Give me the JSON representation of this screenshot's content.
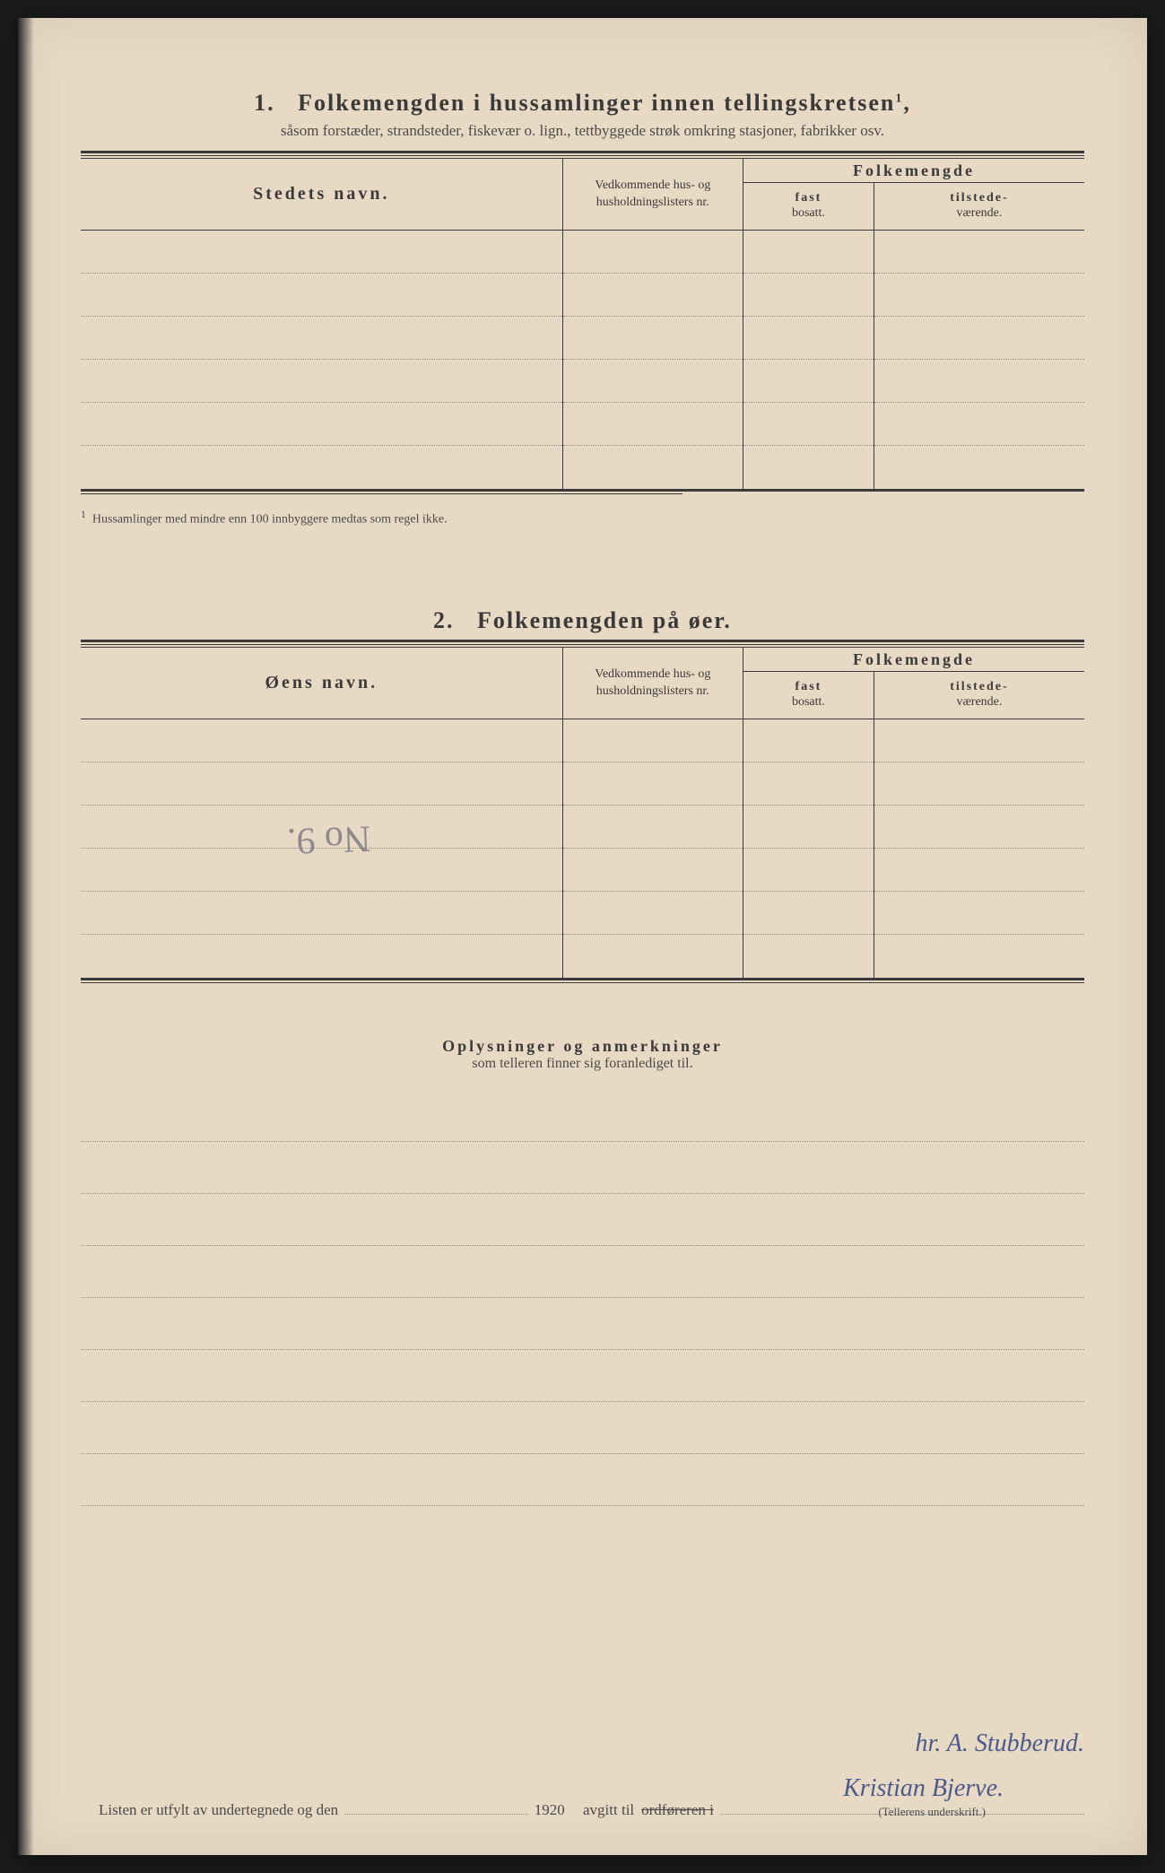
{
  "colors": {
    "paper": "#e8d9c4",
    "ink": "#3a3a3a",
    "faint_ink": "#4a4a4a",
    "dotted": "#8a8a8a",
    "pen_blue": "#4a5a8a"
  },
  "typography": {
    "title_fontsize": 26,
    "subtitle_fontsize": 17,
    "header_fontsize": 20,
    "subheader_fontsize": 14,
    "body_fontsize": 17,
    "signature_fontsize": 28
  },
  "section1": {
    "number": "1.",
    "title": "Folkemengden i hussamlinger innen tellingskretsen",
    "sup": "1",
    "subtitle": "såsom forstæder, strandsteder, fiskevær o. lign., tettbyggede strøk omkring stasjoner, fabrikker osv.",
    "columns": {
      "name": "Stedets navn.",
      "hus": "Vedkommende hus- og husholdningslisters nr.",
      "pop": "Folkemengde",
      "fast_top": "fast",
      "fast_bottom": "bosatt.",
      "tilstede_top": "tilstede-",
      "tilstede_bottom": "værende."
    },
    "row_count": 6,
    "footnote_marker": "1",
    "footnote": "Hussamlinger med mindre enn 100 innbyggere medtas som regel ikke."
  },
  "section2": {
    "number": "2.",
    "title": "Folkemengden på øer.",
    "columns": {
      "name": "Øens navn.",
      "hus": "Vedkommende hus- og husholdningslisters nr.",
      "pop": "Folkemengde",
      "fast_top": "fast",
      "fast_bottom": "bosatt.",
      "tilstede_top": "tilstede-",
      "tilstede_bottom": "værende."
    },
    "row_count": 6,
    "handwritten_note": "No 9."
  },
  "notes": {
    "title": "Oplysninger og anmerkninger",
    "subtitle": "som telleren finner sig foranlediget til.",
    "line_count": 8
  },
  "footer": {
    "text_a": "Listen er utfylt av undertegnede og den",
    "year": "1920",
    "text_b": "avgitt til",
    "strike": "ordføreren i",
    "signature1": "hr. A. Stubberud.",
    "signature2": "Kristian Bjerve.",
    "sig_label": "(Tellerens underskrift.)"
  }
}
